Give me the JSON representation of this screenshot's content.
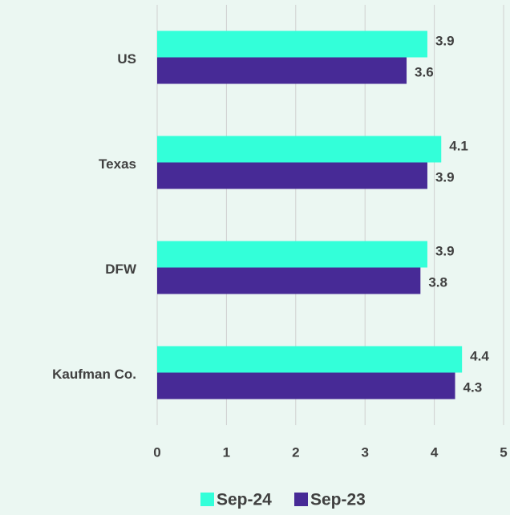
{
  "chart_data": {
    "type": "bar",
    "orientation": "horizontal",
    "categories": [
      "US",
      "Texas",
      "DFW",
      "Kaufman Co."
    ],
    "series": [
      {
        "name": "Sep-24",
        "color": "#33ffd9",
        "values": [
          3.9,
          4.1,
          3.9,
          4.4
        ]
      },
      {
        "name": "Sep-23",
        "color": "#472a96",
        "values": [
          3.6,
          3.9,
          3.8,
          4.3
        ]
      }
    ],
    "xlim": [
      0,
      5
    ],
    "xticks": [
      0,
      1,
      2,
      3,
      4,
      5
    ],
    "grid": true,
    "legend": "bottom"
  }
}
